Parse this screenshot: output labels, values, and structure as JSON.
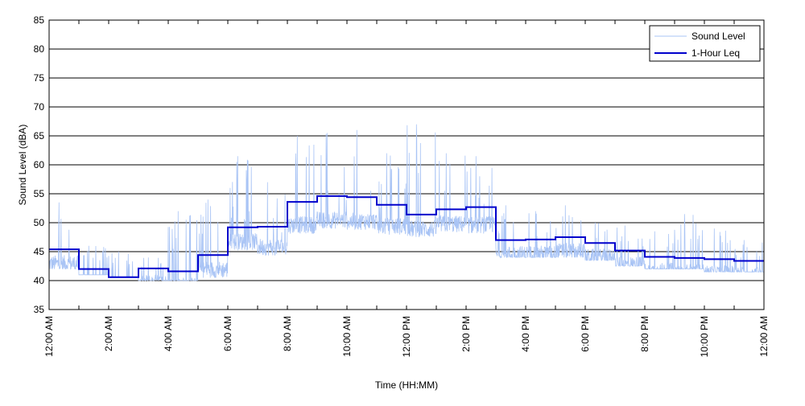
{
  "chart_data": {
    "type": "line",
    "title": "",
    "xlabel": "Time (HH:MM)",
    "ylabel": "Sound Level (dBA)",
    "ylim": [
      35,
      85
    ],
    "yticks": [
      35,
      40,
      45,
      50,
      55,
      60,
      65,
      70,
      75,
      80,
      85
    ],
    "xlim": [
      0,
      24
    ],
    "xticks": [
      0,
      2,
      4,
      6,
      8,
      10,
      12,
      14,
      16,
      18,
      20,
      22,
      24
    ],
    "xtick_labels": [
      "12:00 AM",
      "2:00 AM",
      "4:00 AM",
      "6:00 AM",
      "8:00 AM",
      "10:00 AM",
      "12:00 PM",
      "2:00 PM",
      "4:00 PM",
      "6:00 PM",
      "8:00 PM",
      "10:00 PM",
      "12:00 AM"
    ],
    "x_unit": "hours after 12:00 AM",
    "grid": "horizontal",
    "legend_position": "top-right",
    "series": [
      {
        "name": "Sound Level",
        "color": "#a9c4f5",
        "style": "thin line, dense fluctuating measurements",
        "hourly_range": [
          [
            42,
            53.5
          ],
          [
            41,
            46
          ],
          [
            40.5,
            45
          ],
          [
            40,
            44
          ],
          [
            40,
            52
          ],
          [
            40.5,
            54
          ],
          [
            40.5,
            61.5
          ],
          [
            41,
            57
          ],
          [
            43,
            65
          ],
          [
            44,
            65.5
          ],
          [
            43.5,
            66
          ],
          [
            44,
            62
          ],
          [
            45,
            67
          ],
          [
            44.5,
            62
          ],
          [
            44.5,
            61.5
          ],
          [
            44,
            53
          ],
          [
            44,
            52
          ],
          [
            44,
            53
          ],
          [
            43.5,
            50
          ],
          [
            42.5,
            49.5
          ],
          [
            42,
            48.5
          ],
          [
            42,
            51.5
          ],
          [
            41.5,
            49
          ],
          [
            41.5,
            47
          ]
        ]
      },
      {
        "name": "1-Hour Leq",
        "color": "#0000cc",
        "style": "thick stepped line",
        "x": [
          0,
          1,
          2,
          3,
          4,
          5,
          6,
          7,
          8,
          9,
          10,
          11,
          12,
          13,
          14,
          15,
          16,
          17,
          18,
          19,
          20,
          21,
          22,
          23
        ],
        "values": [
          45.4,
          42,
          40.6,
          42.1,
          41.6,
          44.4,
          49.2,
          49.3,
          53.6,
          54.6,
          54.4,
          53.1,
          51.4,
          52.3,
          52.7,
          47,
          47.1,
          47.5,
          46.5,
          45.2,
          44.1,
          43.9,
          43.7,
          43.4
        ]
      }
    ]
  }
}
